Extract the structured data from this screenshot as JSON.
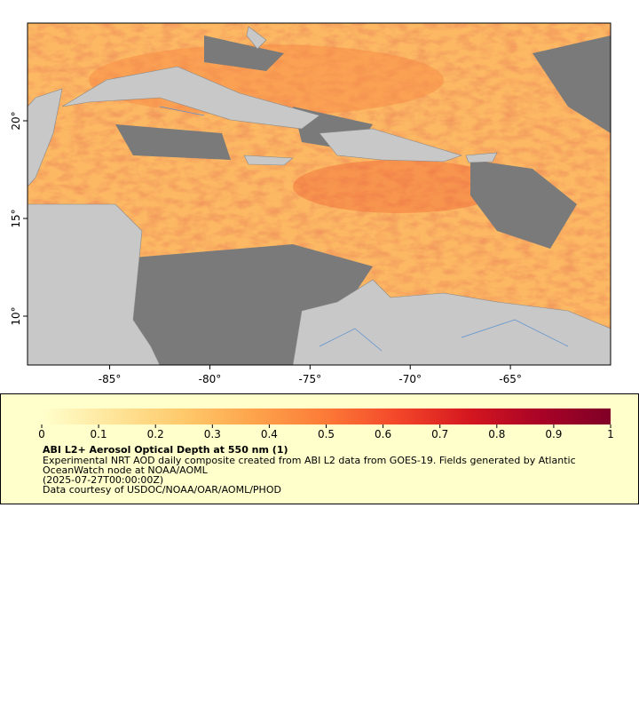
{
  "map": {
    "xlim": [
      -89.1,
      -60
    ],
    "ylim": [
      7.5,
      25
    ],
    "xticks": [
      {
        "value": -85,
        "label": "-85°"
      },
      {
        "value": -80,
        "label": "-80°"
      },
      {
        "value": -75,
        "label": "-75°"
      },
      {
        "value": -70,
        "label": "-70°"
      },
      {
        "value": -65,
        "label": "-65°"
      }
    ],
    "yticks": [
      {
        "value": 10,
        "label": "10°"
      },
      {
        "value": 15,
        "label": "15°"
      },
      {
        "value": 20,
        "label": "20°"
      }
    ]
  },
  "legend": {
    "colorbar": {
      "lim": [
        0,
        1
      ],
      "ticks": [
        0,
        0.1,
        0.2,
        0.3,
        0.4,
        0.5,
        0.6,
        0.7,
        0.8,
        0.9,
        1
      ],
      "colors": [
        "#ffffcc",
        "#fee59a",
        "#fec96a",
        "#fda34b",
        "#fc7a37",
        "#f3472a",
        "#d5171f",
        "#a90326",
        "#800026"
      ]
    },
    "title": "ABI L2+ Aerosol Optical Depth at 550 nm (1)",
    "lines": [
      "Experimental NRT AOD daily composite created from ABI L2 data from GOES-19. Fields generated by Atlantic",
      "OceanWatch node at NOAA/AOML",
      "(2025-07-27T00:00:00Z)",
      "Data courtesy of USDOC/NOAA/OAR/AOML/PHOD"
    ]
  }
}
